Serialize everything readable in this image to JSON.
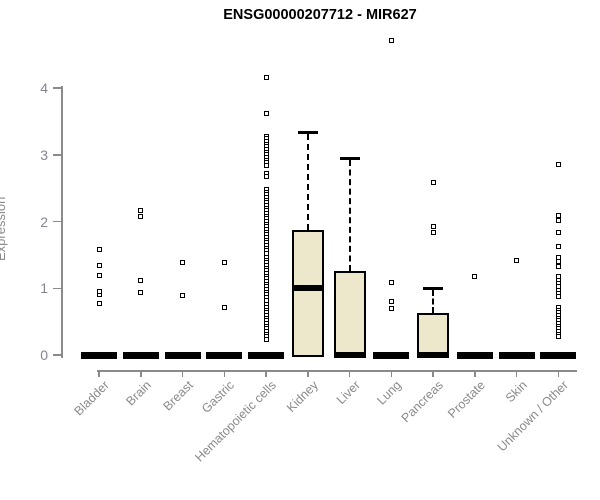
{
  "title": "ENSG00000207712 - MIR627",
  "chart_data": {
    "type": "boxplot",
    "title": "ENSG00000207712 - MIR627",
    "xlabel": "",
    "ylabel": "Expression",
    "ylim": [
      0,
      4
    ],
    "y_ticks": [
      0,
      1,
      2,
      3,
      4
    ],
    "grid": false,
    "legend": "none",
    "categories": [
      "Bladder",
      "Brain",
      "Breast",
      "Gastric",
      "Hematopoietic cells",
      "Kidney",
      "Liver",
      "Lung",
      "Pancreas",
      "Prostate",
      "Skin",
      "Unknown / Other"
    ],
    "series": [
      {
        "name": "Bladder",
        "q1": 0,
        "median": 0,
        "q3": 0,
        "whisker_low": 0,
        "whisker_high": 0,
        "outliers": [
          0.77,
          0.9,
          0.95,
          1.19,
          1.34,
          1.58
        ]
      },
      {
        "name": "Brain",
        "q1": 0,
        "median": 0,
        "q3": 0,
        "whisker_low": 0,
        "whisker_high": 0,
        "outliers": [
          0.94,
          1.11,
          2.08,
          2.17
        ]
      },
      {
        "name": "Breast",
        "q1": 0,
        "median": 0,
        "q3": 0,
        "whisker_low": 0,
        "whisker_high": 0,
        "outliers": [
          0.89,
          1.38
        ]
      },
      {
        "name": "Gastric",
        "q1": 0,
        "median": 0,
        "q3": 0,
        "whisker_low": 0,
        "whisker_high": 0,
        "outliers": [
          0.71,
          1.38
        ]
      },
      {
        "name": "Hematopoietic cells",
        "q1": 0,
        "median": 0,
        "q3": 0,
        "whisker_low": 0,
        "whisker_high": 0,
        "outliers": [
          4.15,
          3.62,
          3.28,
          3.24,
          3.2,
          3.16,
          3.12,
          3.08,
          3.04,
          3.0,
          2.96,
          2.92,
          2.88,
          2.84,
          2.72,
          2.68,
          2.48,
          2.44,
          2.4,
          2.36,
          2.32,
          2.28,
          2.24,
          2.2,
          2.16,
          2.12,
          2.08,
          2.04,
          2.0,
          1.96,
          1.92,
          1.88,
          1.84,
          1.8,
          1.76,
          1.72,
          1.68,
          1.64,
          1.6,
          1.56,
          1.52,
          1.46,
          1.42,
          1.38,
          1.34,
          1.3,
          1.26,
          1.22,
          1.18,
          1.14,
          1.1,
          1.06,
          1.02,
          0.98,
          0.94,
          0.9,
          0.86,
          0.82,
          0.75,
          0.71,
          0.67,
          0.63,
          0.59,
          0.55,
          0.51,
          0.47,
          0.43,
          0.39,
          0.35,
          0.31,
          0.27,
          0.23
        ]
      },
      {
        "name": "Kidney",
        "q1": 0,
        "median": 1.01,
        "q3": 1.88,
        "whisker_low": 0,
        "whisker_high": 3.34,
        "outliers": []
      },
      {
        "name": "Liver",
        "q1": 0,
        "median": 0,
        "q3": 1.26,
        "whisker_low": 0,
        "whisker_high": 2.95,
        "outliers": []
      },
      {
        "name": "Lung",
        "q1": 0,
        "median": 0,
        "q3": 0,
        "whisker_low": 0,
        "whisker_high": 0,
        "outliers": [
          0.69,
          0.8,
          1.09,
          4.71
        ]
      },
      {
        "name": "Pancreas",
        "q1": 0,
        "median": 0,
        "q3": 0.63,
        "whisker_low": 0,
        "whisker_high": 1.0,
        "outliers": [
          1.84,
          1.92,
          2.59
        ]
      },
      {
        "name": "Prostate",
        "q1": 0,
        "median": 0,
        "q3": 0,
        "whisker_low": 0,
        "whisker_high": 0,
        "outliers": [
          1.17
        ]
      },
      {
        "name": "Skin",
        "q1": 0,
        "median": 0,
        "q3": 0,
        "whisker_low": 0,
        "whisker_high": 0,
        "outliers": [
          1.42
        ]
      },
      {
        "name": "Unknown / Other",
        "q1": 0,
        "median": 0,
        "q3": 0,
        "whisker_low": 0,
        "whisker_high": 0,
        "outliers": [
          2.86,
          2.09,
          2.02,
          1.84,
          1.63,
          1.46,
          1.4,
          1.33,
          1.17,
          1.12,
          1.07,
          1.02,
          0.97,
          0.92,
          0.87,
          0.71,
          0.67,
          0.63,
          0.59,
          0.55,
          0.51,
          0.47,
          0.43,
          0.39,
          0.35,
          0.31,
          0.27
        ]
      }
    ],
    "colors": {
      "box_fill": "#EDE8CC",
      "box_line": "#000000",
      "median_line": "#000000",
      "outlier_line": "#000000",
      "axis": "#8a8a8a",
      "tick_label": "#85858f",
      "category_label": "#8a8a8a",
      "title_text": "#000000",
      "background": "#ffffff"
    }
  }
}
